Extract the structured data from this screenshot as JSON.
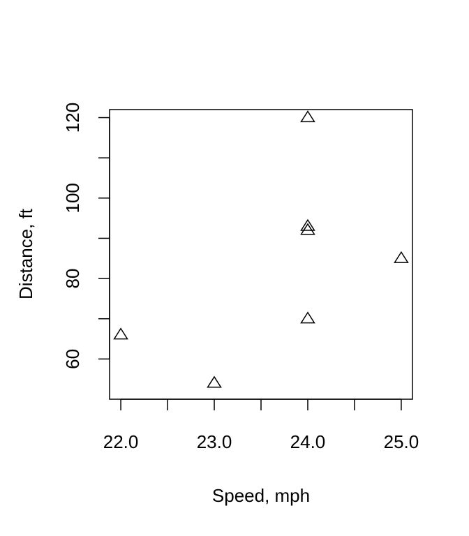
{
  "chart_data": {
    "type": "scatter",
    "title": "",
    "xlabel": "Speed, mph",
    "ylabel": "Distance, ft",
    "xlim": [
      21.88,
      25.12
    ],
    "ylim": [
      50,
      122
    ],
    "x_ticks": [
      22.0,
      22.5,
      23.0,
      23.5,
      24.0,
      24.5,
      25.0
    ],
    "x_tick_labels": [
      "22.0",
      "",
      "23.0",
      "",
      "24.0",
      "",
      "25.0"
    ],
    "y_ticks": [
      60,
      70,
      80,
      90,
      100,
      110,
      120
    ],
    "y_tick_labels": [
      "60",
      "",
      "80",
      "",
      "100",
      "",
      "120"
    ],
    "marker": "open-triangle",
    "grid": false,
    "points": [
      {
        "x": 22,
        "y": 66
      },
      {
        "x": 23,
        "y": 54
      },
      {
        "x": 24,
        "y": 70
      },
      {
        "x": 24,
        "y": 92
      },
      {
        "x": 24,
        "y": 93
      },
      {
        "x": 24,
        "y": 120
      },
      {
        "x": 25,
        "y": 85
      }
    ]
  }
}
